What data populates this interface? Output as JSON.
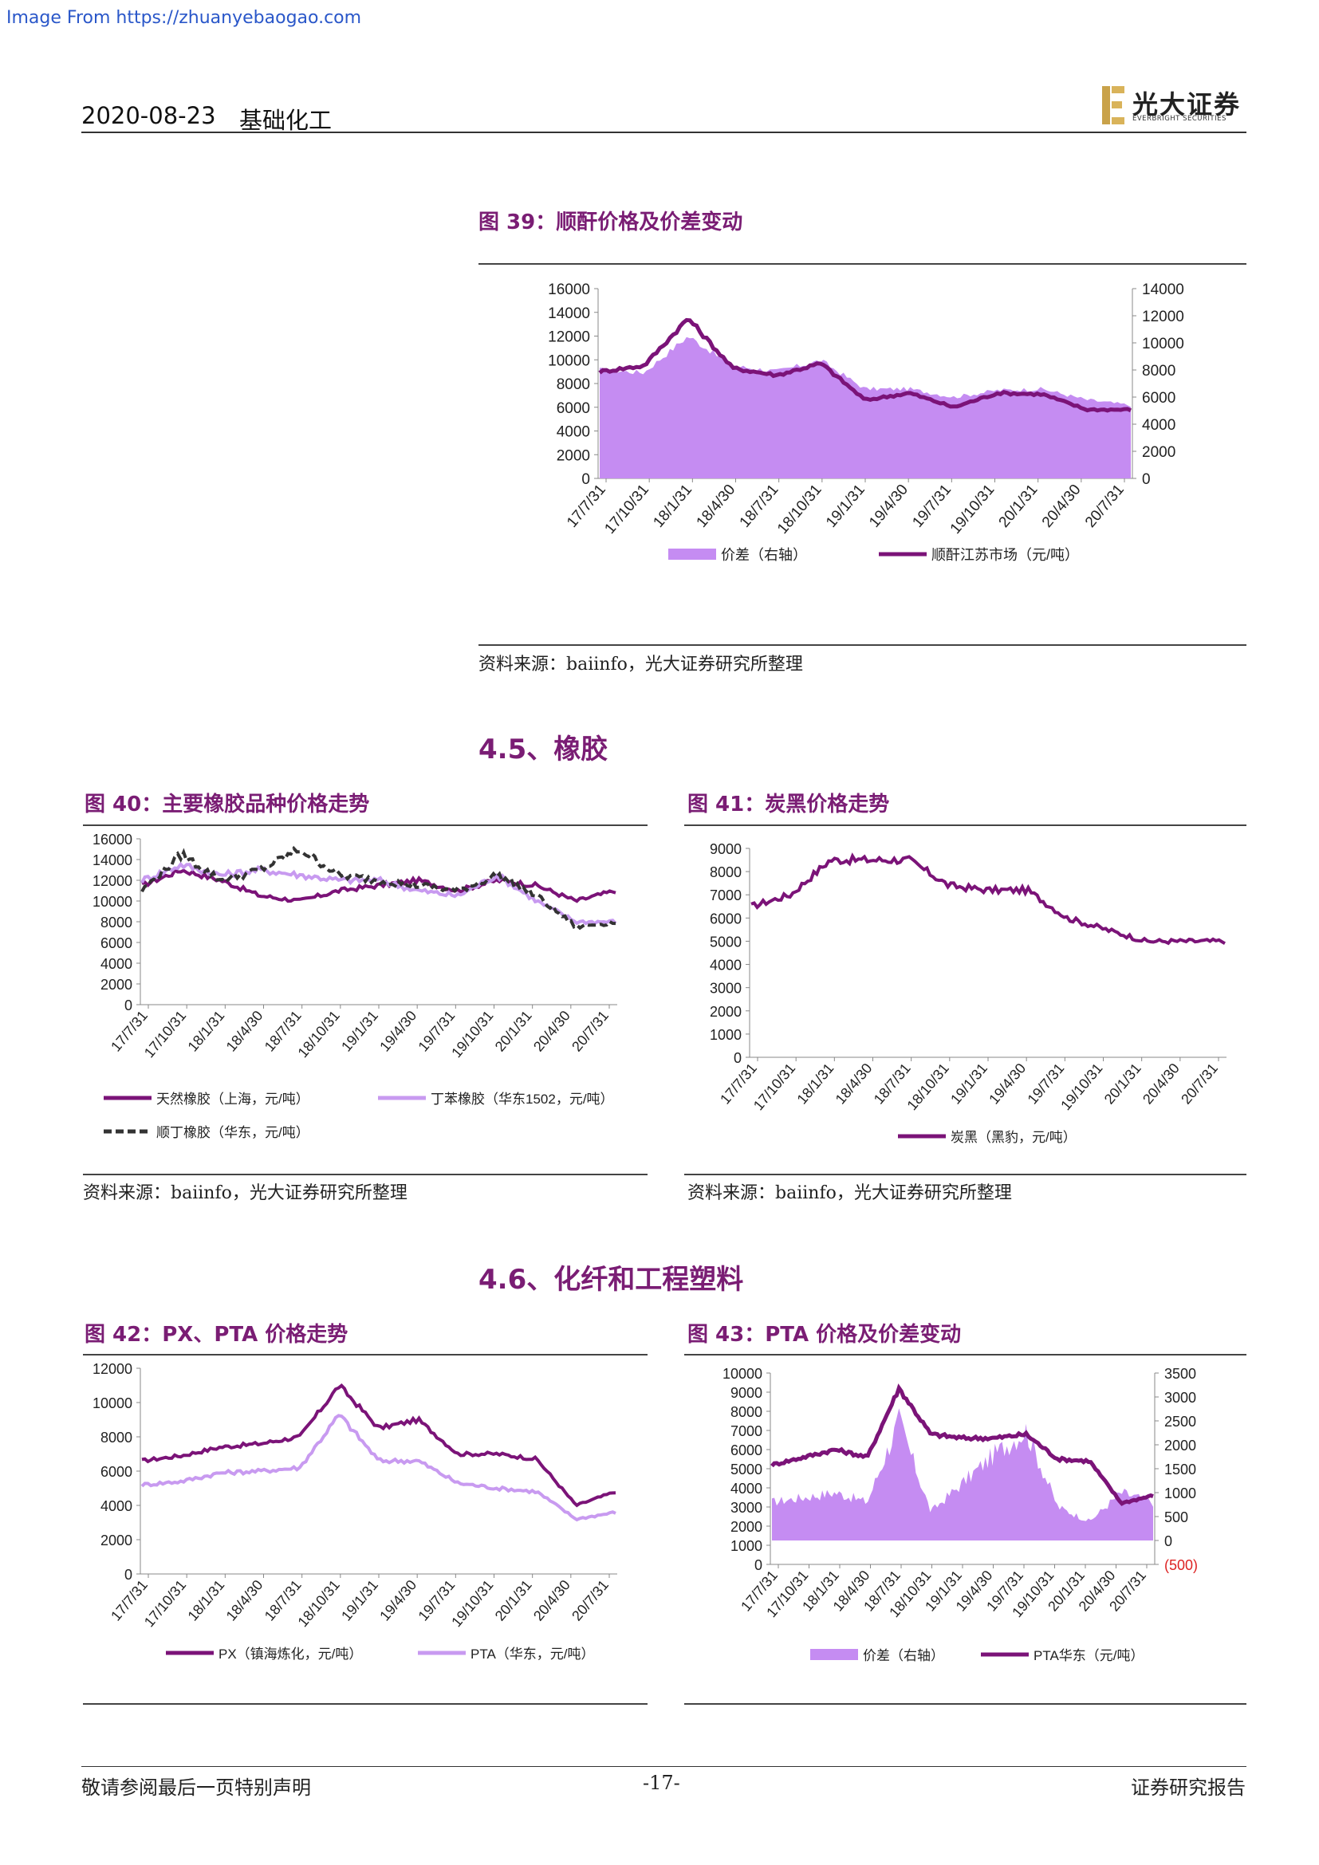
{
  "watermark": "Image From https://zhuanyebaogao.com",
  "header": {
    "date": "2020-08-23",
    "sector": "基础化工",
    "logo_cn": "光大证券",
    "logo_en": "EVERBRIGHT SECURITIES"
  },
  "footer": {
    "disclaimer": "敬请参阅最后一页特别声明",
    "page": "-17-",
    "doc_type": "证券研究报告"
  },
  "sections": {
    "s45": "4.5、橡胶",
    "s46": "4.6、化纤和工程塑料"
  },
  "figures": {
    "f39": {
      "title": "图 39：顺酐价格及价差变动",
      "source": "资料来源：baiinfo，光大证券研究所整理"
    },
    "f40": {
      "title": "图 40：主要橡胶品种价格走势",
      "source": "资料来源：baiinfo，光大证券研究所整理"
    },
    "f41": {
      "title": "图 41：炭黑价格走势",
      "source": "资料来源：baiinfo，光大证券研究所整理"
    },
    "f42": {
      "title": "图 42：PX、PTA 价格走势"
    },
    "f43": {
      "title": "图 43：PTA 价格及价差变动"
    }
  },
  "colors": {
    "dark": "#7b1378",
    "light": "#c89af0",
    "fill": "#c58cf2",
    "black": "#333333",
    "neg": "#d22"
  },
  "chart_data": [
    {
      "id": "f39",
      "type": "area",
      "x": [
        "17/7/31",
        "17/10/31",
        "18/1/31",
        "18/4/30",
        "18/7/31",
        "18/10/31",
        "19/1/31",
        "19/4/30",
        "19/7/31",
        "19/10/31",
        "20/1/31",
        "20/4/30",
        "20/7/31"
      ],
      "series": [
        {
          "name": "价差（右轴）",
          "axis": "right",
          "values": [
            8000,
            7800,
            10500,
            8300,
            7900,
            8700,
            6600,
            6600,
            6000,
            6500,
            6600,
            5800,
            5400
          ]
        },
        {
          "name": "顺酐江苏市场（元/吨）",
          "axis": "left",
          "values": [
            9000,
            9500,
            13500,
            9300,
            8700,
            9700,
            6600,
            7200,
            6000,
            7200,
            7100,
            5800,
            5800
          ]
        }
      ],
      "ylim_left": [
        0,
        16000
      ],
      "yticks_left": [
        0,
        2000,
        4000,
        6000,
        8000,
        10000,
        12000,
        14000,
        16000
      ],
      "ylim_right": [
        0,
        14000
      ],
      "yticks_right": [
        0,
        2000,
        4000,
        6000,
        8000,
        10000,
        12000,
        14000
      ]
    },
    {
      "id": "f40",
      "type": "line",
      "x": [
        "17/7/31",
        "17/10/31",
        "18/1/31",
        "18/4/30",
        "18/7/31",
        "18/10/31",
        "19/1/31",
        "19/4/30",
        "19/7/31",
        "19/10/31",
        "20/1/31",
        "20/4/30",
        "20/7/31"
      ],
      "series": [
        {
          "name": "天然橡胶（上海，元/吨）",
          "values": [
            11500,
            13000,
            12000,
            10500,
            10000,
            11000,
            11500,
            12000,
            11000,
            12000,
            11500,
            10000,
            11000
          ]
        },
        {
          "name": "丁苯橡胶（华东1502，元/吨）",
          "values": [
            12000,
            13500,
            12500,
            13000,
            12500,
            12000,
            12000,
            11000,
            10500,
            12500,
            10000,
            8000,
            8000
          ]
        },
        {
          "name": "顺丁橡胶（华东，元/吨）",
          "values": [
            11000,
            14500,
            12000,
            13000,
            15000,
            12500,
            12000,
            11500,
            11000,
            12500,
            10500,
            7500,
            8000
          ]
        }
      ],
      "ylim": [
        0,
        16000
      ],
      "yticks": [
        0,
        2000,
        4000,
        6000,
        8000,
        10000,
        12000,
        14000,
        16000
      ]
    },
    {
      "id": "f41",
      "type": "line",
      "x": [
        "17/7/31",
        "17/10/31",
        "18/1/31",
        "18/4/30",
        "18/7/31",
        "18/10/31",
        "19/1/31",
        "19/4/30",
        "19/7/31",
        "19/10/31",
        "20/1/31",
        "20/4/30",
        "20/7/31"
      ],
      "series": [
        {
          "name": "炭黑（黑豹，元/吨）",
          "values": [
            6500,
            7000,
            8500,
            8500,
            8500,
            7400,
            7200,
            7200,
            6000,
            5500,
            5000,
            5000,
            5000
          ]
        }
      ],
      "ylim": [
        0,
        9000
      ],
      "yticks": [
        0,
        1000,
        2000,
        3000,
        4000,
        5000,
        6000,
        7000,
        8000,
        9000
      ]
    },
    {
      "id": "f42",
      "type": "line",
      "x": [
        "17/7/31",
        "17/10/31",
        "18/1/31",
        "18/4/30",
        "18/7/31",
        "18/10/31",
        "19/1/31",
        "19/4/30",
        "19/7/31",
        "19/10/31",
        "20/1/31",
        "20/4/30",
        "20/7/31"
      ],
      "series": [
        {
          "name": "PX（镇海炼化，元/吨）",
          "values": [
            6600,
            6900,
            7400,
            7600,
            8000,
            11000,
            8500,
            9000,
            7000,
            7000,
            6700,
            4000,
            4800
          ]
        },
        {
          "name": "PTA（华东，元/吨）",
          "values": [
            5200,
            5400,
            5900,
            6000,
            6200,
            9300,
            6600,
            6600,
            5300,
            5000,
            4800,
            3200,
            3600
          ]
        }
      ],
      "ylim": [
        0,
        12000
      ],
      "yticks": [
        0,
        2000,
        4000,
        6000,
        8000,
        10000,
        12000
      ]
    },
    {
      "id": "f43",
      "type": "area",
      "x": [
        "17/7/31",
        "17/10/31",
        "18/1/31",
        "18/4/30",
        "18/7/31",
        "18/10/31",
        "19/1/31",
        "19/4/30",
        "19/7/31",
        "19/10/31",
        "20/1/31",
        "20/4/30",
        "20/7/31"
      ],
      "series": [
        {
          "name": "价差（右轴）",
          "axis": "right",
          "values": [
            800,
            900,
            1000,
            800,
            2500,
            600,
            1200,
            1800,
            2300,
            700,
            400,
            1000,
            800
          ]
        },
        {
          "name": "PTA华东（元/吨）",
          "axis": "left",
          "values": [
            5200,
            5600,
            6000,
            5600,
            9200,
            6800,
            6600,
            6600,
            6800,
            5500,
            5400,
            3200,
            3600
          ]
        }
      ],
      "ylim_left": [
        0,
        10000
      ],
      "yticks_left": [
        0,
        1000,
        2000,
        3000,
        4000,
        5000,
        6000,
        7000,
        8000,
        9000,
        10000
      ],
      "ylim_right": [
        -500,
        3500
      ],
      "yticks_right": [
        "(500)",
        "0",
        "500",
        "1000",
        "1500",
        "2000",
        "2500",
        "3000",
        "3500"
      ]
    }
  ]
}
